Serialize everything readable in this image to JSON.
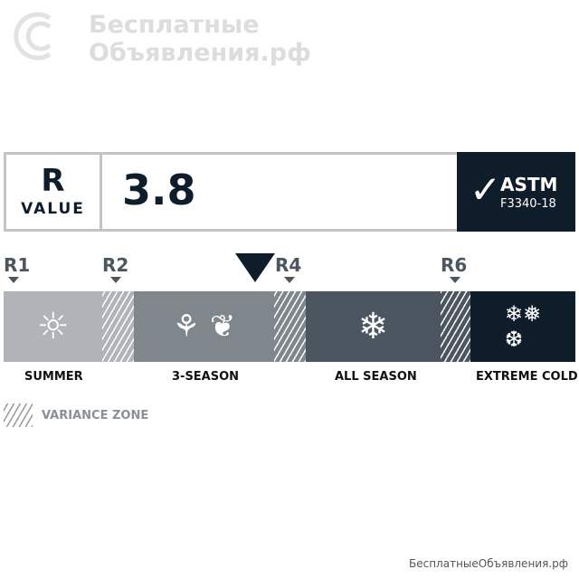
{
  "watermark": {
    "line1": "Бесплатные",
    "line2": "Объявления.рф",
    "bottom": "БесплатныеОбъявления.рф"
  },
  "rvalue": {
    "r": "R",
    "value_label": "VALUE",
    "value": "3.8"
  },
  "badge": {
    "title": "ASTM",
    "subtitle": "F3340-18",
    "icon": "checkmark-icon"
  },
  "scale": {
    "markers": [
      "R1",
      "R2",
      "R4",
      "R6"
    ],
    "current_value": 3.8
  },
  "zones": [
    {
      "label": "SUMMER",
      "icon": "sun-icon",
      "color": "#b0b4b8"
    },
    {
      "label": "3-SEASON",
      "icon": "flower-leaf-icon",
      "color": "#7f868c"
    },
    {
      "label": "ALL SEASON",
      "icon": "snowflake-icon",
      "color": "#4b5661"
    },
    {
      "label": "EXTREME COLD",
      "icon": "snowflakes-icon",
      "color": "#0f1d2b"
    }
  ],
  "legend": {
    "variance": "VARIANCE ZONE"
  }
}
